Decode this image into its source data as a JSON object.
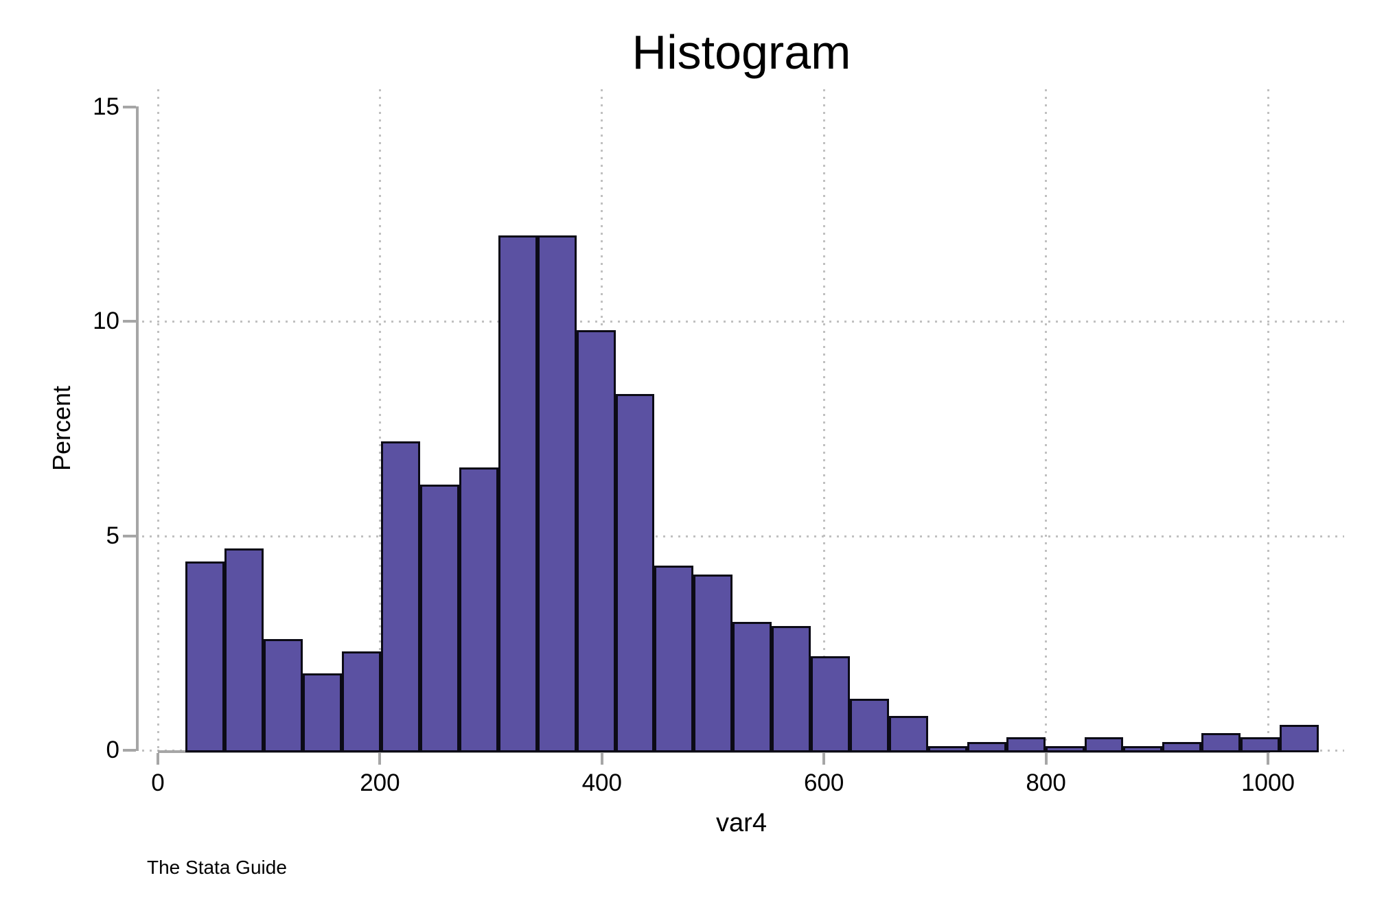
{
  "title": "Histogram",
  "source_credit": "The Stata Guide",
  "x_axis": {
    "label": "var4",
    "ticks": [
      0,
      200,
      400,
      600,
      800,
      1000
    ]
  },
  "y_axis": {
    "label": "Percent",
    "ticks": [
      0,
      5,
      10,
      15
    ],
    "gridline_ticks": [
      0,
      5,
      10
    ]
  },
  "colors": {
    "background": "#ffffff",
    "bar_fill": "#5b51a2",
    "bar_border": "#0c0b16",
    "axis": "#a6a6a6",
    "gridline": "#c0c0c0",
    "text": "#000000"
  },
  "chart_data": {
    "type": "bar",
    "subtype": "histogram",
    "title": "Histogram",
    "xlabel": "var4",
    "ylabel": "Percent",
    "xlim": [
      0,
      1070
    ],
    "ylim": [
      0,
      15
    ],
    "x_ticks": [
      0,
      200,
      400,
      600,
      800,
      1000
    ],
    "y_ticks": [
      0,
      5,
      10,
      15
    ],
    "grid": "dotted gridlines at major ticks (vertical at 0-1000, horizontal at 0, 5, 10)",
    "legend": "none",
    "first_bin_start": 25,
    "bin_width": 35.2,
    "n_bins": 29,
    "values_unit": "percent",
    "values": [
      4.4,
      4.7,
      2.6,
      1.8,
      2.3,
      7.2,
      6.2,
      6.6,
      12.0,
      12.0,
      9.8,
      8.3,
      4.3,
      4.1,
      3.0,
      2.9,
      2.2,
      1.2,
      0.8,
      0.1,
      0.2,
      0.3,
      0.1,
      0.3,
      0.1,
      0.2,
      0.4,
      0.3,
      0.6
    ]
  }
}
